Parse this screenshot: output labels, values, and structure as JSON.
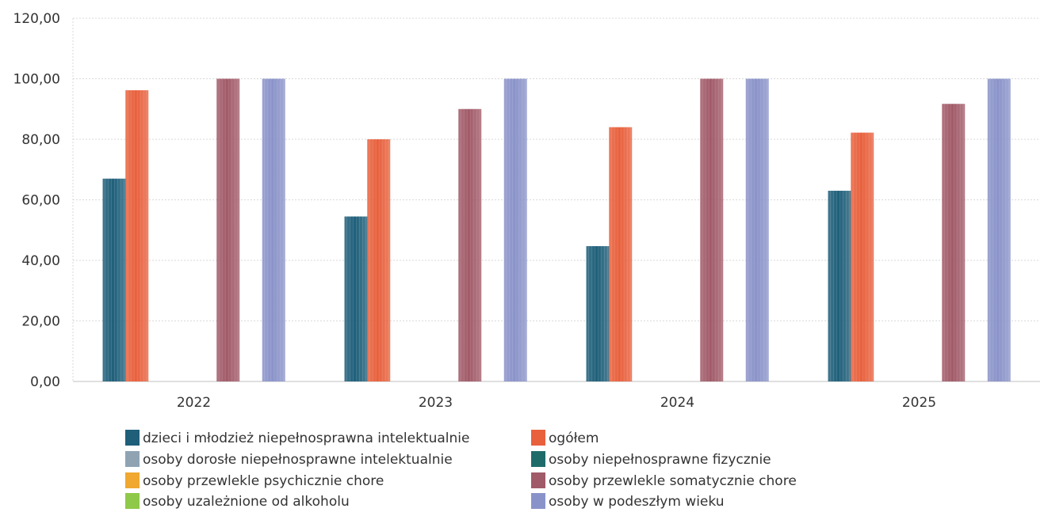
{
  "chart_data": {
    "type": "bar",
    "categories": [
      "2022",
      "2023",
      "2024",
      "2025"
    ],
    "ylim": [
      0,
      120
    ],
    "yticks": [
      "0,00",
      "20,00",
      "40,00",
      "60,00",
      "80,00",
      "100,00",
      "120,00"
    ],
    "ytick_values": [
      0,
      20,
      40,
      60,
      80,
      100,
      120
    ],
    "grid": true,
    "legend_position": "bottom",
    "series": [
      {
        "name": "dzieci i młodzież niepełnosprawna intelektualnie",
        "color": "#1f5f7a",
        "values": [
          67,
          54.5,
          44.7,
          63
        ]
      },
      {
        "name": "ogółem",
        "color": "#e8603c",
        "values": [
          96.2,
          80,
          84,
          82.2
        ]
      },
      {
        "name": "osoby dorosłe niepełnosprawne intelektualnie",
        "color": "#8fa3b3",
        "values": [
          0,
          0,
          0,
          0
        ]
      },
      {
        "name": "osoby niepełnosprawne fizycznie",
        "color": "#1e6b6a",
        "values": [
          0,
          0,
          0,
          0
        ]
      },
      {
        "name": "osoby przewlekle psychicznie chore",
        "color": "#f0a830",
        "values": [
          0,
          0,
          0,
          0
        ]
      },
      {
        "name": "osoby przewlekle somatycznie chore",
        "color": "#a15a68",
        "values": [
          100,
          90,
          100,
          91.7
        ]
      },
      {
        "name": "osoby uzależnione od alkoholu",
        "color": "#8fc94a",
        "values": [
          0,
          0,
          0,
          0
        ]
      },
      {
        "name": "osoby w podeszłym wieku",
        "color": "#8a93c9",
        "values": [
          100,
          100,
          100,
          100
        ]
      }
    ]
  }
}
